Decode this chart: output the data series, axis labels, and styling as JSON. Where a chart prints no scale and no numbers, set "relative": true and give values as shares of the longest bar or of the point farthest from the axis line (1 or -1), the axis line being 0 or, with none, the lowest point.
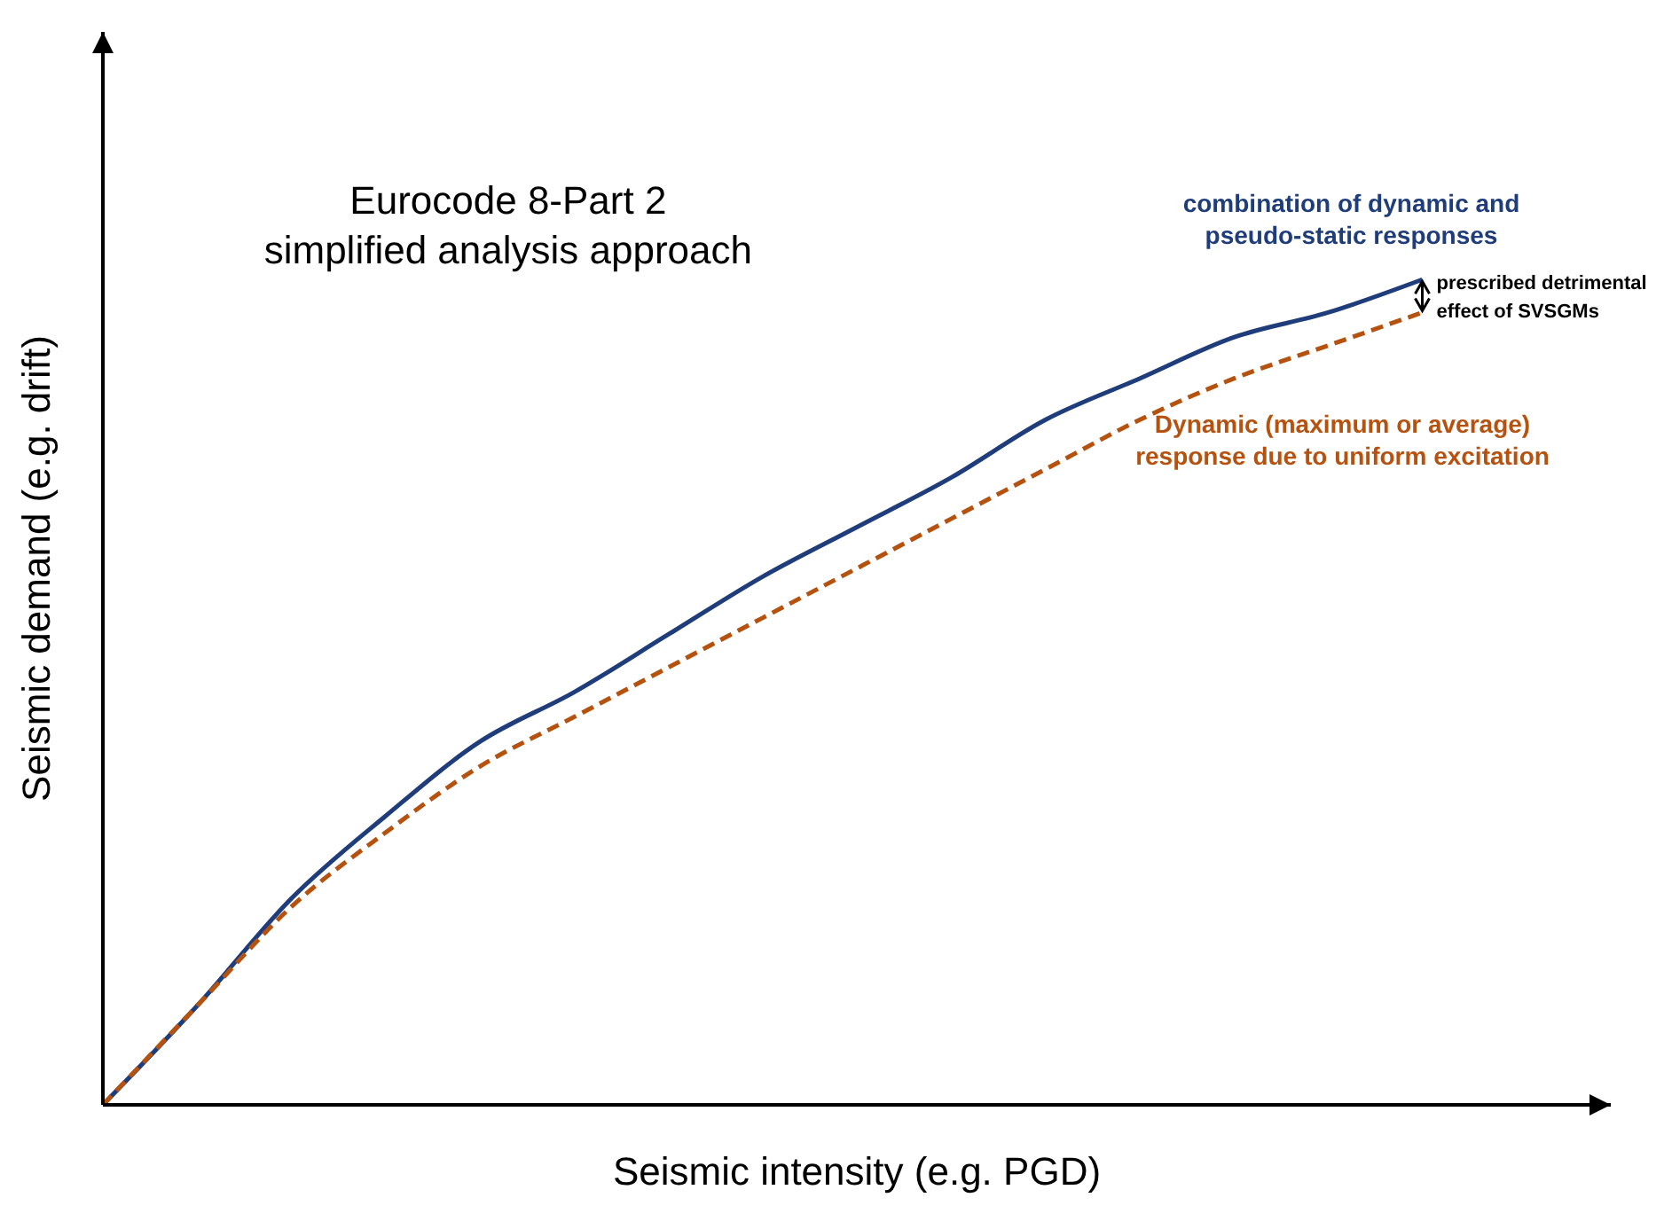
{
  "chart_data": {
    "type": "line",
    "title": "Eurocode 8-Part 2\nsimplified analysis approach",
    "xlabel": "Seismic intensity (e.g. PGD)",
    "ylabel": "Seismic demand (e.g. drift)",
    "relative": true,
    "categories": [
      null,
      null,
      null,
      null,
      null,
      null,
      null,
      null,
      null,
      null,
      null,
      null,
      null,
      null,
      null,
      null,
      null
    ],
    "series": [
      {
        "name": "combination of dynamic and\npseudo-static responses",
        "color": "#1f3d7a",
        "line_style": "solid",
        "values": [
          0,
          0.12,
          0.25,
          0.35,
          0.44,
          0.5,
          0.57,
          0.64,
          0.7,
          0.76,
          0.83,
          0.88,
          0.93,
          0.96,
          1,
          null,
          null
        ]
      },
      {
        "name": "Dynamic (maximum or average)\nresponse due to uniform excitation",
        "color": "#b5520f",
        "line_style": "dashed",
        "values": [
          0,
          0.12,
          0.24,
          0.33,
          0.41,
          0.47,
          0.53,
          0.59,
          0.65,
          0.71,
          0.77,
          0.83,
          0.88,
          0.92,
          0.96,
          null,
          null
        ]
      }
    ],
    "annotations": [
      "prescribed detrimental\neffect of SVSGMs"
    ],
    "marker": "none"
  }
}
